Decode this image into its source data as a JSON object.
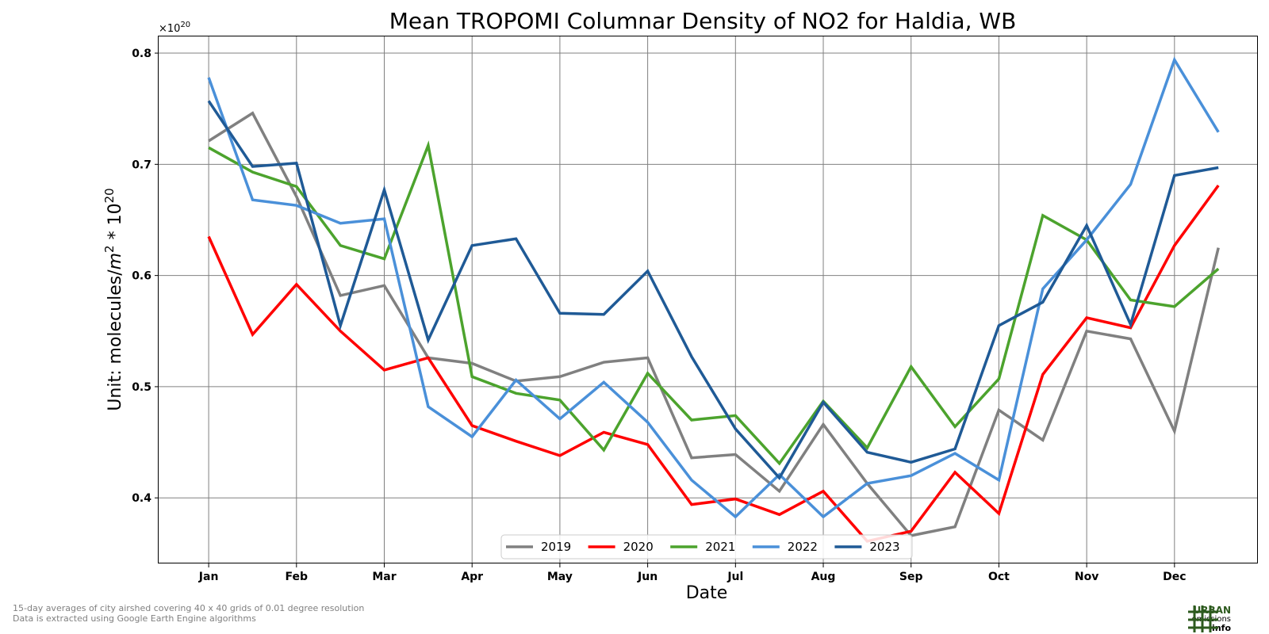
{
  "chart_data": {
    "type": "line",
    "title": "Mean TROPOMI Columnar Density of NO2 for Haldia, WB",
    "xlabel": "Date",
    "ylabel_prefix": "Unit: molecules/",
    "ylabel_m": "m",
    "ylabel_m_exp": "2",
    "ylabel_mid": " * 10",
    "ylabel_exp": "20",
    "offset_base": "×10",
    "offset_exp": "20",
    "x_ticks": [
      "Jan",
      "Feb",
      "Mar",
      "Apr",
      "May",
      "Jun",
      "Jul",
      "Aug",
      "Sep",
      "Oct",
      "Nov",
      "Dec"
    ],
    "y_ticks": [
      "0.4",
      "0.5",
      "0.6",
      "0.7",
      "0.8"
    ],
    "y_tick_values": [
      0.4,
      0.5,
      0.6,
      0.7,
      0.8
    ],
    "ylim": [
      0.341,
      0.815
    ],
    "x_positions": [
      0,
      0.5,
      1,
      1.5,
      2,
      2.5,
      3,
      3.5,
      4,
      4.5,
      5,
      5.5,
      6,
      6.5,
      7,
      7.5,
      8,
      8.5,
      9,
      9.5,
      10,
      10.5,
      11,
      11.5
    ],
    "xlim": [
      -0.57,
      11.95
    ],
    "grid": true,
    "legend_position": "bottom-center",
    "series": [
      {
        "name": "2019",
        "color": "#808080",
        "values": [
          0.721,
          0.746,
          0.671,
          0.582,
          0.591,
          0.526,
          0.521,
          0.505,
          0.509,
          0.522,
          0.526,
          0.436,
          0.439,
          0.406,
          0.466,
          0.413,
          0.366,
          0.374,
          0.479,
          0.452,
          0.55,
          0.543,
          0.46,
          0.625
        ]
      },
      {
        "name": "2020",
        "color": "#ff0000",
        "values": [
          0.635,
          0.547,
          0.592,
          0.55,
          0.515,
          0.526,
          0.465,
          0.451,
          0.438,
          0.459,
          0.448,
          0.394,
          0.399,
          0.385,
          0.406,
          0.361,
          0.37,
          0.423,
          0.386,
          0.511,
          0.562,
          0.553,
          0.627,
          0.681
        ]
      },
      {
        "name": "2021",
        "color": "#4ca32d",
        "values": [
          0.715,
          0.693,
          0.68,
          0.627,
          0.615,
          0.717,
          0.509,
          0.494,
          0.488,
          0.443,
          0.512,
          0.47,
          0.474,
          0.431,
          0.487,
          0.445,
          0.518,
          0.464,
          0.507,
          0.654,
          0.632,
          0.578,
          0.572,
          0.606
        ]
      },
      {
        "name": "2022",
        "color": "#4a90d9",
        "values": [
          0.778,
          0.668,
          0.663,
          0.647,
          0.651,
          0.482,
          0.455,
          0.506,
          0.471,
          0.504,
          0.468,
          0.416,
          0.383,
          0.421,
          0.383,
          0.413,
          0.42,
          0.44,
          0.416,
          0.588,
          0.632,
          0.682,
          0.794,
          0.729
        ]
      },
      {
        "name": "2023",
        "color": "#1f5a96",
        "values": [
          0.757,
          0.698,
          0.701,
          0.555,
          0.677,
          0.542,
          0.627,
          0.633,
          0.566,
          0.565,
          0.604,
          0.527,
          0.462,
          0.418,
          0.486,
          0.441,
          0.432,
          0.444,
          0.555,
          0.576,
          0.645,
          0.556,
          0.69,
          0.697
        ]
      }
    ]
  },
  "footnote": {
    "line1": "15-day averages of city airshed covering 40 x 40 grids of 0.01 degree resolution",
    "line2": "Data is extracted using Google Earth Engine algorithms"
  },
  "logo": {
    "line1": "URBAN",
    "line2": "emissions",
    "line3": ".info",
    "color": "#2d5a1e"
  }
}
